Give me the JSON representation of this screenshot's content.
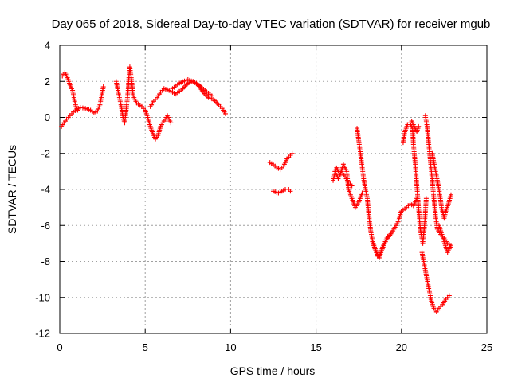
{
  "chart_data": {
    "type": "scatter",
    "title": "Day 065 of 2018, Sidereal Day-to-day VTEC variation (SDTVAR) for receiver mgub",
    "xlabel": "GPS time / hours",
    "ylabel": "SDTVAR / TECUs",
    "xlim": [
      0,
      25
    ],
    "ylim": [
      -12,
      4
    ],
    "xticks": [
      "0",
      "5",
      "10",
      "15",
      "20",
      "25"
    ],
    "yticks": [
      "-12",
      "-10",
      "-8",
      "-6",
      "-4",
      "-2",
      "0",
      "2",
      "4"
    ],
    "grid": true,
    "marker": "plus",
    "color": "#ff0000",
    "series": [
      {
        "name": "SDTVAR",
        "segments": [
          [
            [
              0.15,
              2.3
            ],
            [
              0.3,
              2.5
            ],
            [
              0.45,
              2.2
            ],
            [
              0.6,
              1.8
            ],
            [
              0.75,
              1.5
            ],
            [
              0.85,
              1.0
            ],
            [
              0.95,
              0.6
            ],
            [
              1.05,
              0.4
            ]
          ],
          [
            [
              0.1,
              -0.5
            ],
            [
              0.25,
              -0.3
            ],
            [
              0.4,
              -0.1
            ],
            [
              0.6,
              0.1
            ],
            [
              0.8,
              0.3
            ],
            [
              1.0,
              0.45
            ],
            [
              1.2,
              0.55
            ],
            [
              1.5,
              0.5
            ],
            [
              1.8,
              0.4
            ],
            [
              2.0,
              0.25
            ],
            [
              2.2,
              0.35
            ],
            [
              2.35,
              0.7
            ],
            [
              2.45,
              1.2
            ],
            [
              2.55,
              1.7
            ]
          ],
          [
            [
              3.3,
              2.0
            ],
            [
              3.45,
              1.3
            ],
            [
              3.6,
              0.6
            ],
            [
              3.7,
              0.0
            ],
            [
              3.8,
              -0.3
            ],
            [
              3.9,
              0.5
            ],
            [
              4.0,
              1.5
            ],
            [
              4.05,
              2.3
            ],
            [
              4.1,
              2.8
            ],
            [
              4.2,
              2.1
            ],
            [
              4.3,
              1.2
            ],
            [
              4.5,
              0.8
            ],
            [
              4.8,
              0.6
            ],
            [
              5.0,
              0.4
            ],
            [
              5.15,
              0.0
            ],
            [
              5.3,
              -0.5
            ],
            [
              5.45,
              -0.9
            ],
            [
              5.6,
              -1.2
            ],
            [
              5.75,
              -1.0
            ],
            [
              5.9,
              -0.5
            ],
            [
              6.1,
              -0.2
            ],
            [
              6.3,
              0.1
            ],
            [
              6.5,
              -0.3
            ]
          ],
          [
            [
              5.3,
              0.6
            ],
            [
              5.5,
              0.9
            ],
            [
              5.7,
              1.1
            ],
            [
              5.9,
              1.4
            ],
            [
              6.1,
              1.6
            ],
            [
              6.4,
              1.5
            ],
            [
              6.8,
              1.3
            ],
            [
              7.2,
              1.6
            ],
            [
              7.5,
              1.9
            ],
            [
              7.8,
              2.0
            ],
            [
              8.1,
              1.8
            ],
            [
              8.4,
              1.4
            ],
            [
              8.7,
              1.1
            ],
            [
              9.0,
              1.0
            ],
            [
              9.3,
              0.7
            ],
            [
              9.5,
              0.5
            ],
            [
              9.7,
              0.2
            ]
          ],
          [
            [
              6.6,
              1.6
            ],
            [
              7.0,
              1.9
            ],
            [
              7.5,
              2.1
            ],
            [
              8.0,
              1.9
            ],
            [
              8.5,
              1.5
            ],
            [
              8.9,
              1.2
            ]
          ],
          [
            [
              12.3,
              -2.5
            ],
            [
              12.6,
              -2.7
            ],
            [
              12.9,
              -2.9
            ],
            [
              13.1,
              -2.7
            ],
            [
              13.3,
              -2.3
            ],
            [
              13.5,
              -2.1
            ],
            [
              13.6,
              -2.0
            ]
          ],
          [
            [
              12.5,
              -4.1
            ],
            [
              12.8,
              -4.2
            ],
            [
              13.0,
              -4.1
            ],
            [
              13.2,
              -4.0
            ],
            [
              13.4,
              -4.0
            ],
            [
              13.5,
              -4.1
            ]
          ],
          [
            [
              16.0,
              -3.5
            ],
            [
              16.2,
              -2.8
            ],
            [
              16.4,
              -3.2
            ],
            [
              16.6,
              -2.6
            ],
            [
              16.8,
              -3.0
            ],
            [
              16.9,
              -4.0
            ],
            [
              17.1,
              -4.5
            ],
            [
              17.3,
              -5.0
            ],
            [
              17.5,
              -4.7
            ],
            [
              17.7,
              -4.2
            ]
          ],
          [
            [
              16.1,
              -3.0
            ],
            [
              16.3,
              -3.4
            ],
            [
              16.5,
              -3.0
            ],
            [
              16.7,
              -3.3
            ],
            [
              16.9,
              -3.6
            ],
            [
              17.1,
              -3.8
            ]
          ],
          [
            [
              17.4,
              -0.6
            ],
            [
              17.6,
              -2.0
            ],
            [
              17.8,
              -3.5
            ],
            [
              18.0,
              -4.5
            ],
            [
              18.1,
              -5.5
            ],
            [
              18.2,
              -6.3
            ],
            [
              18.3,
              -6.8
            ],
            [
              18.45,
              -7.3
            ],
            [
              18.6,
              -7.7
            ],
            [
              18.8,
              -7.5
            ],
            [
              19.0,
              -7.0
            ],
            [
              19.2,
              -6.7
            ],
            [
              19.5,
              -6.3
            ],
            [
              19.8,
              -5.8
            ],
            [
              20.0,
              -5.2
            ],
            [
              20.3,
              -5.0
            ],
            [
              20.5,
              -4.8
            ],
            [
              20.7,
              -4.9
            ],
            [
              20.9,
              -4.5
            ]
          ],
          [
            [
              18.3,
              -6.9
            ],
            [
              18.5,
              -7.4
            ],
            [
              18.7,
              -7.8
            ],
            [
              18.9,
              -7.2
            ],
            [
              19.2,
              -6.6
            ]
          ],
          [
            [
              20.1,
              -1.4
            ],
            [
              20.2,
              -0.8
            ],
            [
              20.35,
              -0.4
            ],
            [
              20.5,
              -0.3
            ],
            [
              20.65,
              -0.6
            ],
            [
              20.7,
              -1.5
            ],
            [
              20.8,
              -2.5
            ],
            [
              20.9,
              -3.8
            ],
            [
              21.0,
              -5.0
            ],
            [
              21.1,
              -6.2
            ],
            [
              21.25,
              -7.0
            ],
            [
              21.35,
              -6.0
            ],
            [
              21.45,
              -4.5
            ]
          ],
          [
            [
              20.6,
              -0.2
            ],
            [
              20.7,
              -0.4
            ],
            [
              20.8,
              -0.6
            ],
            [
              20.9,
              -0.8
            ],
            [
              21.0,
              -0.5
            ]
          ],
          [
            [
              21.4,
              0.1
            ],
            [
              21.5,
              -0.5
            ],
            [
              21.6,
              -1.5
            ],
            [
              21.7,
              -2.5
            ],
            [
              21.8,
              -3.5
            ],
            [
              21.9,
              -4.5
            ],
            [
              22.0,
              -5.5
            ],
            [
              22.1,
              -6.2
            ],
            [
              22.3,
              -6.5
            ],
            [
              22.5,
              -6.7
            ],
            [
              22.7,
              -7.0
            ],
            [
              22.9,
              -7.1
            ]
          ],
          [
            [
              21.2,
              -7.5
            ],
            [
              21.3,
              -8.0
            ],
            [
              21.4,
              -8.5
            ],
            [
              21.5,
              -9.0
            ],
            [
              21.6,
              -9.5
            ],
            [
              21.75,
              -10.2
            ],
            [
              21.9,
              -10.6
            ],
            [
              22.05,
              -10.8
            ],
            [
              22.2,
              -10.6
            ],
            [
              22.4,
              -10.4
            ],
            [
              22.6,
              -10.1
            ],
            [
              22.8,
              -9.9
            ]
          ],
          [
            [
              21.8,
              -2.0
            ],
            [
              22.0,
              -3.0
            ],
            [
              22.2,
              -4.0
            ],
            [
              22.35,
              -5.0
            ],
            [
              22.5,
              -5.6
            ],
            [
              22.6,
              -5.2
            ],
            [
              22.75,
              -4.8
            ],
            [
              22.9,
              -4.3
            ]
          ],
          [
            [
              22.2,
              -6.0
            ],
            [
              22.4,
              -6.6
            ],
            [
              22.6,
              -7.2
            ],
            [
              22.7,
              -7.5
            ],
            [
              22.85,
              -7.2
            ]
          ]
        ]
      }
    ]
  }
}
